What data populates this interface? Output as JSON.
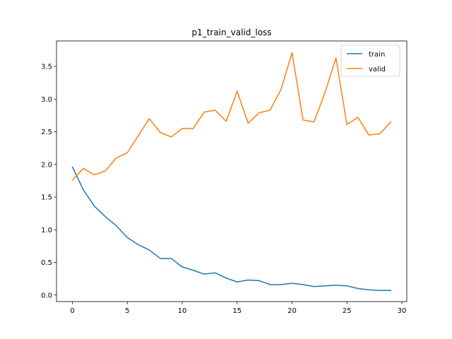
{
  "chart_data": {
    "type": "line",
    "title": "p1_train_valid_loss",
    "xlabel": "",
    "ylabel": "",
    "xlim": [
      -1.45,
      30.45
    ],
    "ylim": [
      -0.1,
      3.89
    ],
    "xticks": [
      0,
      5,
      10,
      15,
      20,
      25,
      30
    ],
    "yticks": [
      0.0,
      0.5,
      1.0,
      1.5,
      2.0,
      2.5,
      3.0,
      3.5
    ],
    "ytick_labels": [
      "0.0",
      "0.5",
      "1.0",
      "1.5",
      "2.0",
      "2.5",
      "3.0",
      "3.5"
    ],
    "grid": false,
    "legend": "top-right",
    "x": [
      0,
      1,
      2,
      3,
      4,
      5,
      6,
      7,
      8,
      9,
      10,
      11,
      12,
      13,
      14,
      15,
      16,
      17,
      18,
      19,
      20,
      21,
      22,
      23,
      24,
      25,
      26,
      27,
      28,
      29
    ],
    "series": [
      {
        "name": "train",
        "color": "#1f77b4",
        "values": [
          1.96,
          1.61,
          1.36,
          1.2,
          1.06,
          0.88,
          0.77,
          0.69,
          0.56,
          0.56,
          0.43,
          0.38,
          0.32,
          0.34,
          0.26,
          0.2,
          0.23,
          0.22,
          0.16,
          0.16,
          0.18,
          0.16,
          0.13,
          0.14,
          0.15,
          0.14,
          0.1,
          0.08,
          0.07,
          0.07
        ]
      },
      {
        "name": "valid",
        "color": "#ff7f0e",
        "values": [
          1.76,
          1.94,
          1.84,
          1.9,
          2.1,
          2.18,
          2.44,
          2.7,
          2.49,
          2.42,
          2.55,
          2.55,
          2.8,
          2.83,
          2.66,
          3.12,
          2.63,
          2.79,
          2.83,
          3.15,
          3.71,
          2.68,
          2.65,
          3.1,
          3.63,
          2.61,
          2.72,
          2.45,
          2.47,
          2.65
        ]
      }
    ]
  }
}
